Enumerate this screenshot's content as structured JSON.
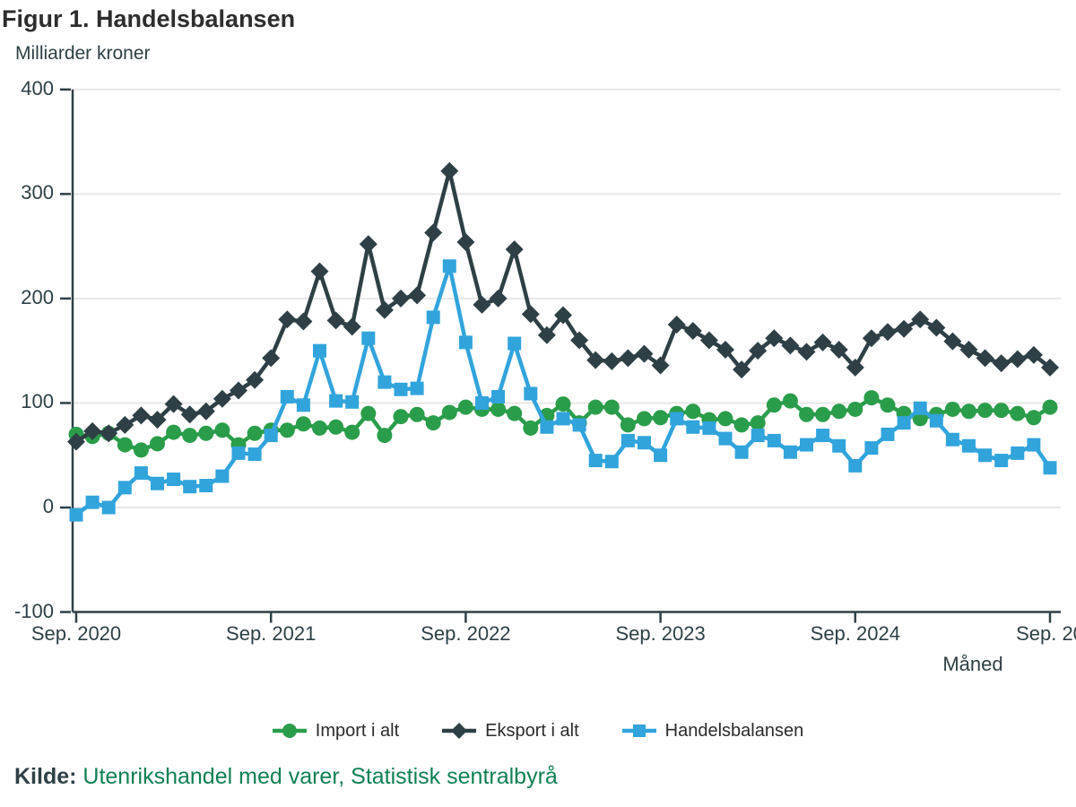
{
  "title": "Figur 1. Handelsbalansen",
  "subtitle": "Milliarder kroner",
  "x_axis_title": "Måned",
  "source": {
    "label": "Kilde:",
    "text": "Utenrikshandel med varer, Statistisk sentralbyrå"
  },
  "colors": {
    "grid": "#e7e7e7",
    "axis": "#2e4046",
    "title_text": "#2d2d2d",
    "source_link_green": "#0e8052",
    "import_green": "#2a9d4a",
    "eksport_dark": "#2e4046",
    "handelsbalansen_blue": "#31a4dc"
  },
  "chart_data": {
    "type": "line",
    "title": "Figur 1. Handelsbalansen",
    "ylabel": "Milliarder kroner",
    "xlabel": "Måned",
    "ylim": [
      -100,
      400
    ],
    "grid": true,
    "legend_position": "bottom",
    "y_ticks": [
      400,
      300,
      200,
      100,
      0,
      -100
    ],
    "x_ticks": {
      "indices": [
        0,
        12,
        24,
        36,
        48,
        60
      ],
      "labels": [
        "Sep. 2020",
        "Sep. 2021",
        "Sep. 2022",
        "Sep. 2023",
        "Sep. 2024",
        "Sep. 20"
      ]
    },
    "x_period": "monthly, Sep. 2020 - Sep. 2025",
    "series": [
      {
        "name": "Import i alt",
        "marker": "circle",
        "color": "#2a9d4a",
        "values": [
          70,
          68,
          71,
          60,
          55,
          61,
          72,
          69,
          71,
          74,
          60,
          71,
          74,
          74,
          80,
          76,
          77,
          72,
          90,
          69,
          87,
          89,
          81,
          91,
          96,
          94,
          94,
          90,
          76,
          88,
          99,
          81,
          96,
          96,
          79,
          85,
          86,
          90,
          92,
          84,
          85,
          79,
          81,
          98,
          102,
          89,
          89,
          92,
          94,
          105,
          98,
          90,
          85,
          89,
          94,
          92,
          93,
          93,
          90,
          86,
          96
        ]
      },
      {
        "name": "Eksport i alt",
        "marker": "diamond",
        "color": "#2e4046",
        "values": [
          63,
          73,
          71,
          79,
          88,
          84,
          99,
          89,
          92,
          104,
          112,
          122,
          143,
          180,
          178,
          226,
          179,
          173,
          252,
          189,
          200,
          203,
          263,
          322,
          254,
          194,
          200,
          247,
          185,
          165,
          184,
          160,
          141,
          140,
          143,
          147,
          136,
          175,
          169,
          160,
          151,
          132,
          150,
          162,
          155,
          149,
          158,
          151,
          134,
          162,
          168,
          171,
          180,
          172,
          159,
          151,
          143,
          138,
          142,
          146,
          134
        ]
      },
      {
        "name": "Handelsbalansen",
        "marker": "square",
        "color": "#31a4dc",
        "values": [
          -7,
          5,
          0,
          19,
          33,
          23,
          27,
          20,
          21,
          30,
          52,
          51,
          69,
          106,
          98,
          150,
          102,
          101,
          162,
          120,
          113,
          114,
          182,
          231,
          158,
          100,
          106,
          157,
          109,
          77,
          85,
          79,
          45,
          44,
          64,
          62,
          50,
          85,
          77,
          76,
          66,
          53,
          69,
          64,
          53,
          60,
          69,
          59,
          40,
          57,
          70,
          81,
          95,
          83,
          65,
          59,
          50,
          45,
          52,
          60,
          38
        ]
      }
    ]
  }
}
